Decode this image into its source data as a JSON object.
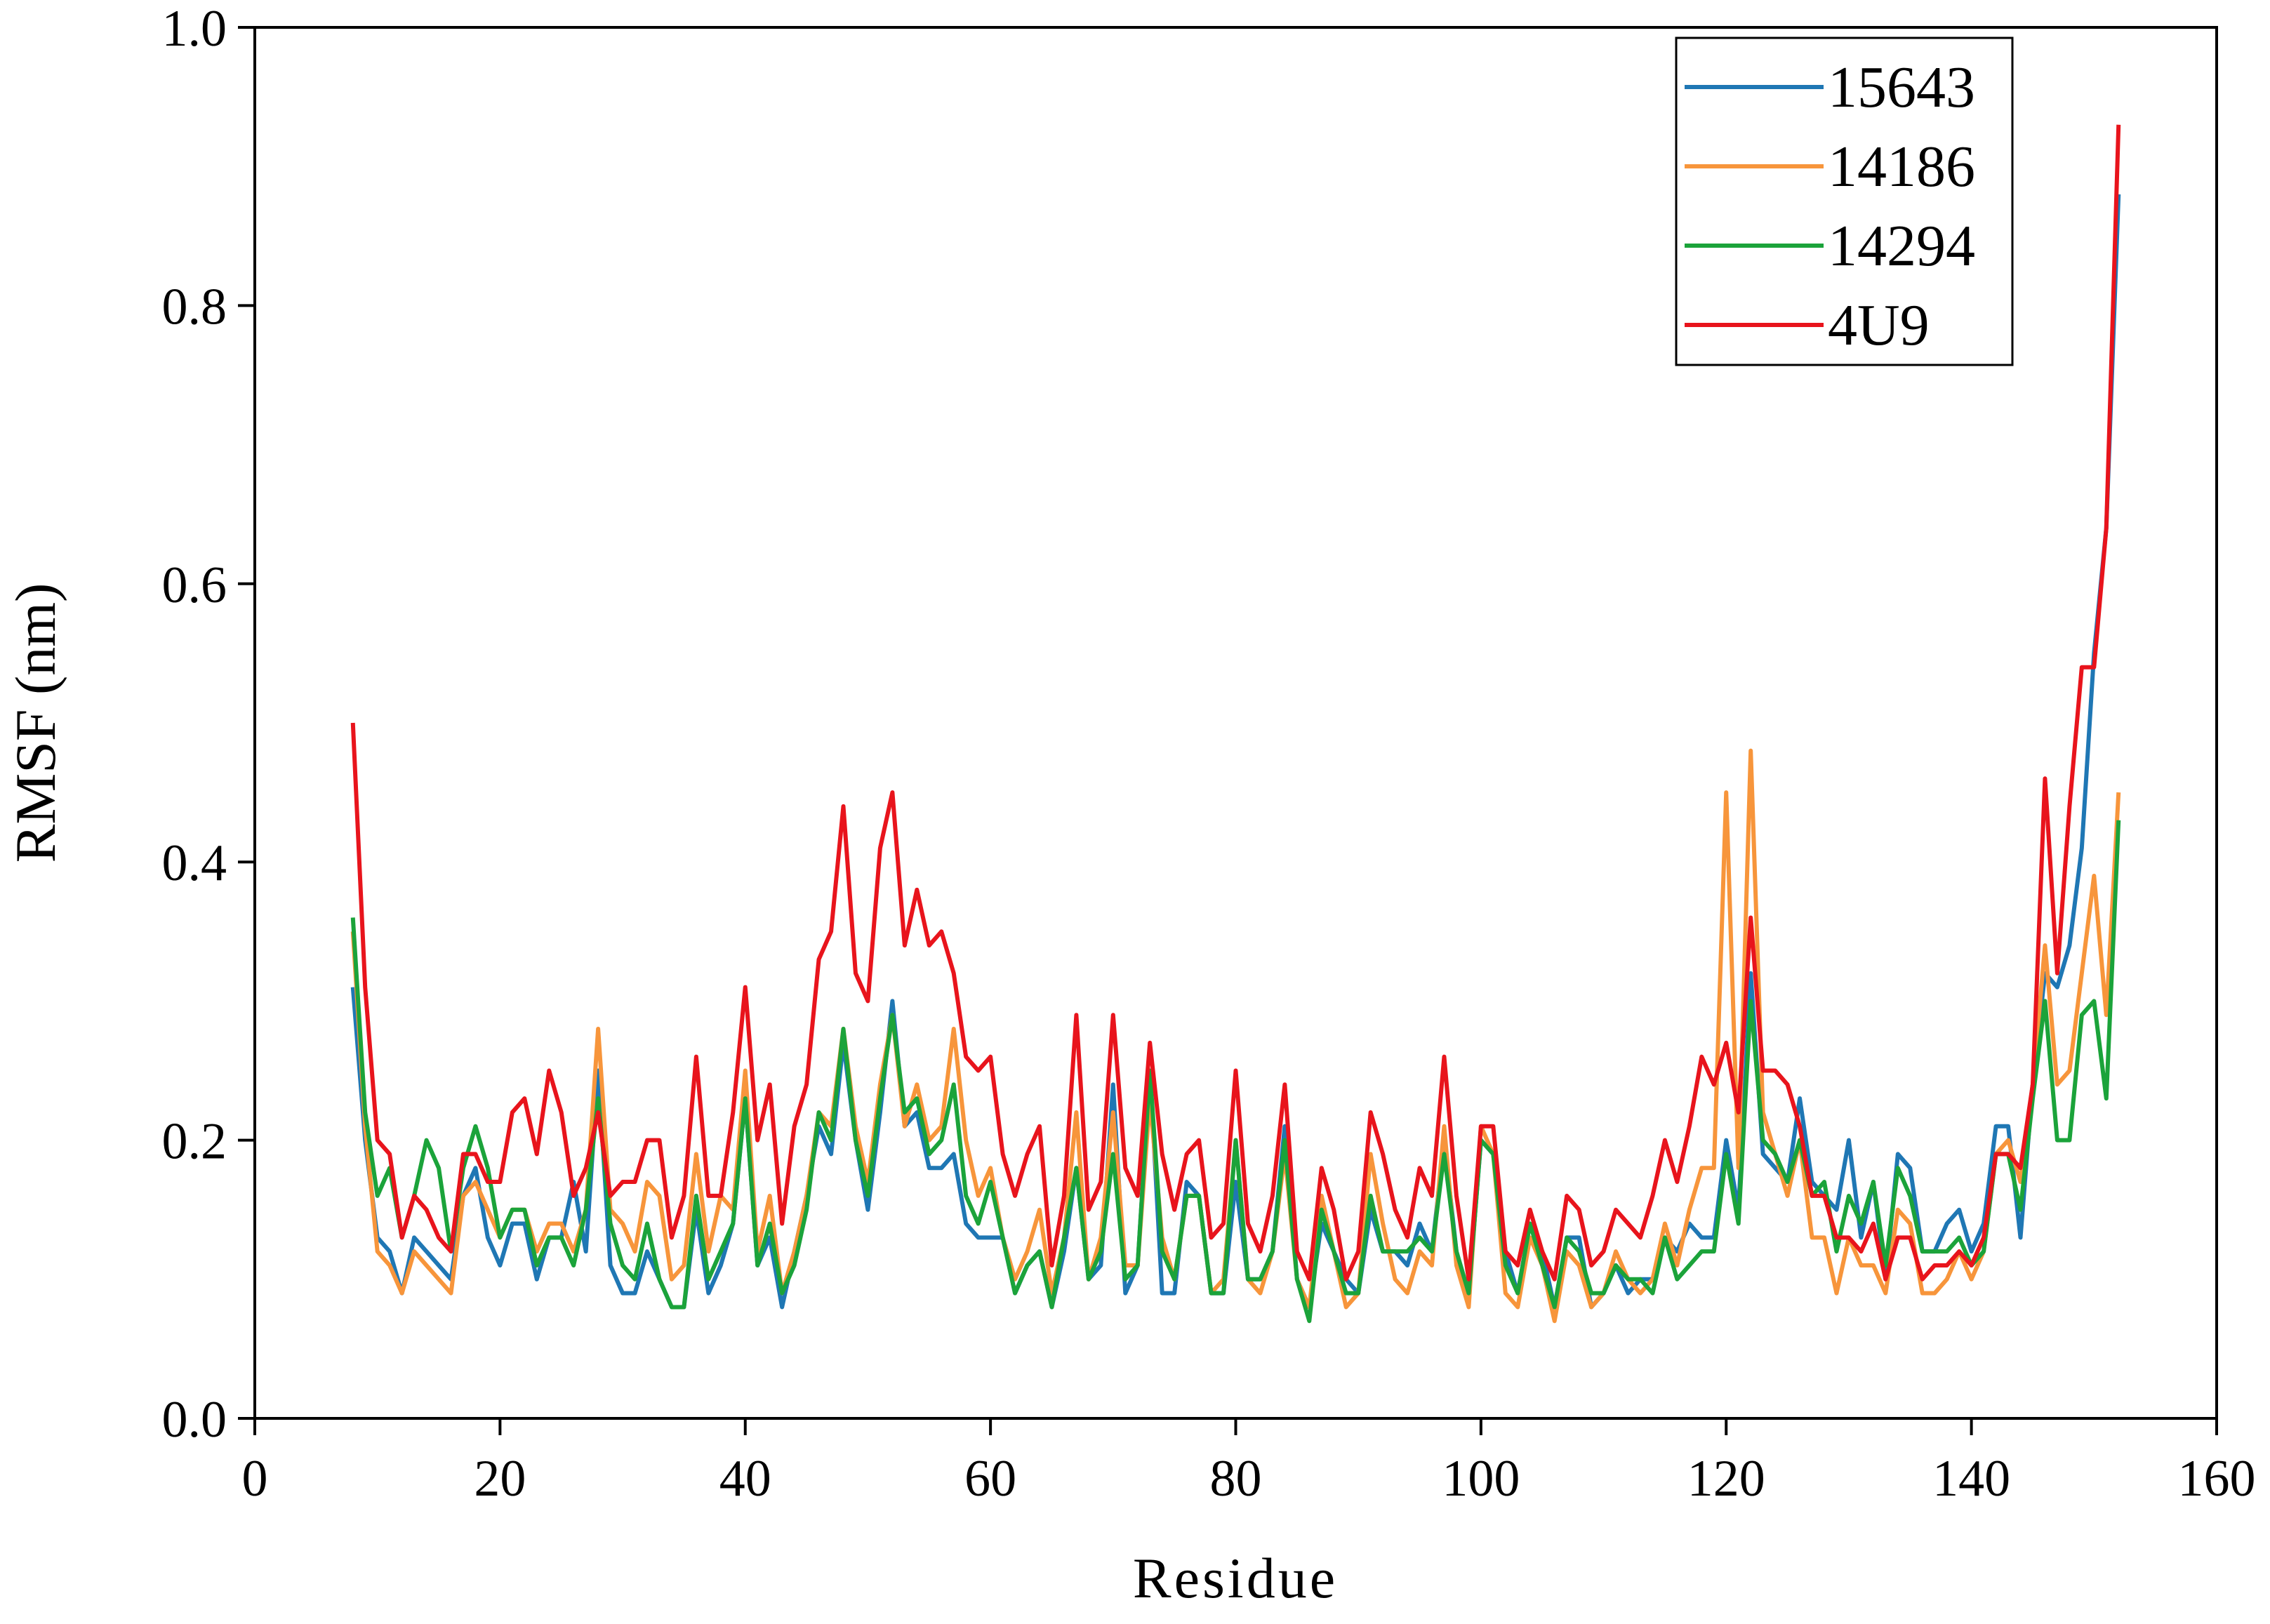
{
  "chart_data": {
    "type": "line",
    "x_label": "Residue",
    "y_label": "RMSF (nm)",
    "xlim": [
      0,
      160
    ],
    "xticks": [
      0,
      20,
      40,
      60,
      80,
      100,
      120,
      140,
      160
    ],
    "ylim": [
      0,
      1
    ],
    "yticks": [
      {
        "value": 0,
        "label": "0.0"
      },
      {
        "value": 0.2,
        "label": "0.2"
      },
      {
        "value": 0.4,
        "label": "0.4"
      },
      {
        "value": 0.6,
        "label": "0.6"
      },
      {
        "value": 0.8,
        "label": "0.8"
      },
      {
        "value": 1,
        "label": "1.0"
      }
    ],
    "grid": false,
    "legend": "upper right",
    "x": [
      8,
      9,
      10,
      11,
      12,
      13,
      14,
      15,
      16,
      17,
      18,
      19,
      20,
      21,
      22,
      23,
      24,
      25,
      26,
      27,
      28,
      29,
      30,
      31,
      32,
      33,
      34,
      35,
      36,
      37,
      38,
      39,
      40,
      41,
      42,
      43,
      44,
      45,
      46,
      47,
      48,
      49,
      50,
      51,
      52,
      53,
      54,
      55,
      56,
      57,
      58,
      59,
      60,
      61,
      62,
      63,
      64,
      65,
      66,
      67,
      68,
      69,
      70,
      71,
      72,
      73,
      74,
      75,
      76,
      77,
      78,
      79,
      80,
      81,
      82,
      83,
      84,
      85,
      86,
      87,
      88,
      89,
      90,
      91,
      92,
      93,
      94,
      95,
      96,
      97,
      98,
      99,
      100,
      101,
      102,
      103,
      104,
      105,
      106,
      107,
      108,
      109,
      110,
      111,
      112,
      113,
      114,
      115,
      116,
      117,
      118,
      119,
      120,
      121,
      122,
      123,
      124,
      125,
      126,
      127,
      128,
      129,
      130,
      131,
      132,
      133,
      134,
      135,
      136,
      137,
      138,
      139,
      140,
      141,
      142,
      143,
      144,
      145,
      146,
      147,
      148,
      149,
      150,
      151,
      152
    ],
    "series": [
      {
        "name": "15643",
        "color": "#1f77b4",
        "values": [
          0.31,
          0.2,
          0.13,
          0.12,
          0.09,
          0.13,
          0.12,
          0.11,
          0.1,
          0.16,
          0.18,
          0.13,
          0.11,
          0.14,
          0.14,
          0.1,
          0.13,
          0.13,
          0.17,
          0.12,
          0.25,
          0.11,
          0.09,
          0.09,
          0.12,
          0.1,
          0.08,
          0.08,
          0.15,
          0.09,
          0.11,
          0.14,
          0.23,
          0.11,
          0.13,
          0.08,
          0.12,
          0.16,
          0.21,
          0.19,
          0.27,
          0.2,
          0.15,
          0.22,
          0.3,
          0.21,
          0.22,
          0.18,
          0.18,
          0.19,
          0.14,
          0.13,
          0.13,
          0.13,
          0.09,
          0.11,
          0.12,
          0.08,
          0.12,
          0.18,
          0.1,
          0.11,
          0.24,
          0.09,
          0.11,
          0.25,
          0.09,
          0.09,
          0.17,
          0.16,
          0.09,
          0.09,
          0.17,
          0.1,
          0.1,
          0.12,
          0.21,
          0.1,
          0.08,
          0.14,
          0.12,
          0.1,
          0.09,
          0.15,
          0.12,
          0.12,
          0.11,
          0.14,
          0.12,
          0.2,
          0.12,
          0.09,
          0.2,
          0.19,
          0.12,
          0.09,
          0.14,
          0.12,
          0.08,
          0.13,
          0.13,
          0.08,
          0.09,
          0.11,
          0.09,
          0.1,
          0.1,
          0.13,
          0.12,
          0.14,
          0.13,
          0.13,
          0.2,
          0.15,
          0.32,
          0.19,
          0.18,
          0.17,
          0.23,
          0.17,
          0.16,
          0.15,
          0.2,
          0.13,
          0.17,
          0.1,
          0.19,
          0.18,
          0.12,
          0.12,
          0.14,
          0.15,
          0.12,
          0.14,
          0.21,
          0.21,
          0.13,
          0.24,
          0.32,
          0.31,
          0.34,
          0.41,
          0.55,
          0.64,
          0.88
        ]
      },
      {
        "name": "14186",
        "color": "#f7953b",
        "values": [
          0.35,
          0.21,
          0.12,
          0.11,
          0.09,
          0.12,
          0.11,
          0.1,
          0.09,
          0.16,
          0.17,
          0.15,
          0.13,
          0.15,
          0.15,
          0.12,
          0.14,
          0.14,
          0.12,
          0.15,
          0.28,
          0.15,
          0.14,
          0.12,
          0.17,
          0.16,
          0.1,
          0.11,
          0.19,
          0.12,
          0.16,
          0.15,
          0.25,
          0.12,
          0.16,
          0.09,
          0.12,
          0.16,
          0.22,
          0.21,
          0.28,
          0.21,
          0.17,
          0.24,
          0.29,
          0.21,
          0.24,
          0.2,
          0.21,
          0.28,
          0.2,
          0.16,
          0.18,
          0.13,
          0.1,
          0.12,
          0.15,
          0.09,
          0.13,
          0.22,
          0.1,
          0.13,
          0.22,
          0.11,
          0.11,
          0.23,
          0.13,
          0.1,
          0.16,
          0.16,
          0.09,
          0.1,
          0.2,
          0.1,
          0.09,
          0.12,
          0.19,
          0.1,
          0.08,
          0.16,
          0.12,
          0.08,
          0.09,
          0.19,
          0.14,
          0.1,
          0.09,
          0.12,
          0.11,
          0.21,
          0.11,
          0.08,
          0.21,
          0.19,
          0.09,
          0.08,
          0.13,
          0.11,
          0.07,
          0.12,
          0.11,
          0.08,
          0.09,
          0.12,
          0.1,
          0.09,
          0.1,
          0.14,
          0.11,
          0.15,
          0.18,
          0.18,
          0.45,
          0.18,
          0.48,
          0.22,
          0.19,
          0.16,
          0.2,
          0.13,
          0.13,
          0.09,
          0.13,
          0.11,
          0.11,
          0.09,
          0.15,
          0.14,
          0.09,
          0.09,
          0.1,
          0.12,
          0.1,
          0.12,
          0.19,
          0.2,
          0.17,
          0.24,
          0.34,
          0.24,
          0.25,
          0.32,
          0.39,
          0.29,
          0.45
        ]
      },
      {
        "name": "14294",
        "color": "#1ba33a",
        "values": [
          0.36,
          0.22,
          0.16,
          0.18,
          0.13,
          0.16,
          0.2,
          0.18,
          0.12,
          0.18,
          0.21,
          0.18,
          0.13,
          0.15,
          0.15,
          0.11,
          0.13,
          0.13,
          0.11,
          0.15,
          0.23,
          0.14,
          0.11,
          0.1,
          0.14,
          0.1,
          0.08,
          0.08,
          0.16,
          0.1,
          0.12,
          0.14,
          0.23,
          0.11,
          0.14,
          0.09,
          0.11,
          0.15,
          0.22,
          0.2,
          0.28,
          0.2,
          0.16,
          0.23,
          0.29,
          0.22,
          0.23,
          0.19,
          0.2,
          0.24,
          0.16,
          0.14,
          0.17,
          0.13,
          0.09,
          0.11,
          0.12,
          0.08,
          0.13,
          0.18,
          0.1,
          0.12,
          0.19,
          0.1,
          0.11,
          0.25,
          0.12,
          0.1,
          0.16,
          0.16,
          0.09,
          0.09,
          0.2,
          0.1,
          0.1,
          0.12,
          0.2,
          0.1,
          0.07,
          0.15,
          0.12,
          0.09,
          0.09,
          0.16,
          0.12,
          0.12,
          0.12,
          0.13,
          0.12,
          0.19,
          0.12,
          0.09,
          0.2,
          0.19,
          0.11,
          0.09,
          0.14,
          0.11,
          0.08,
          0.13,
          0.12,
          0.09,
          0.09,
          0.11,
          0.1,
          0.1,
          0.09,
          0.13,
          0.1,
          0.11,
          0.12,
          0.12,
          0.19,
          0.14,
          0.3,
          0.2,
          0.19,
          0.17,
          0.2,
          0.16,
          0.17,
          0.12,
          0.16,
          0.14,
          0.17,
          0.11,
          0.18,
          0.16,
          0.12,
          0.12,
          0.12,
          0.13,
          0.11,
          0.12,
          0.19,
          0.19,
          0.15,
          0.23,
          0.3,
          0.2,
          0.2,
          0.29,
          0.3,
          0.23,
          0.43
        ]
      },
      {
        "name": "4U9",
        "color": "#e8141c",
        "values": [
          0.5,
          0.31,
          0.2,
          0.19,
          0.13,
          0.16,
          0.15,
          0.13,
          0.12,
          0.19,
          0.19,
          0.17,
          0.17,
          0.22,
          0.23,
          0.19,
          0.25,
          0.22,
          0.16,
          0.18,
          0.22,
          0.16,
          0.17,
          0.17,
          0.2,
          0.2,
          0.13,
          0.16,
          0.26,
          0.16,
          0.16,
          0.22,
          0.31,
          0.2,
          0.24,
          0.14,
          0.21,
          0.24,
          0.33,
          0.35,
          0.44,
          0.32,
          0.3,
          0.41,
          0.45,
          0.34,
          0.38,
          0.34,
          0.35,
          0.32,
          0.26,
          0.25,
          0.26,
          0.19,
          0.16,
          0.19,
          0.21,
          0.11,
          0.16,
          0.29,
          0.15,
          0.17,
          0.29,
          0.18,
          0.16,
          0.27,
          0.19,
          0.15,
          0.19,
          0.2,
          0.13,
          0.14,
          0.25,
          0.14,
          0.12,
          0.16,
          0.24,
          0.12,
          0.1,
          0.18,
          0.15,
          0.1,
          0.12,
          0.22,
          0.19,
          0.15,
          0.13,
          0.18,
          0.16,
          0.26,
          0.16,
          0.1,
          0.21,
          0.21,
          0.12,
          0.11,
          0.15,
          0.12,
          0.1,
          0.16,
          0.15,
          0.11,
          0.12,
          0.15,
          0.14,
          0.13,
          0.16,
          0.2,
          0.17,
          0.21,
          0.26,
          0.24,
          0.27,
          0.22,
          0.36,
          0.25,
          0.25,
          0.24,
          0.21,
          0.16,
          0.16,
          0.13,
          0.13,
          0.12,
          0.14,
          0.1,
          0.13,
          0.13,
          0.1,
          0.11,
          0.11,
          0.12,
          0.11,
          0.13,
          0.19,
          0.19,
          0.18,
          0.24,
          0.46,
          0.32,
          0.44,
          0.54,
          0.54,
          0.64,
          0.93
        ]
      }
    ]
  }
}
